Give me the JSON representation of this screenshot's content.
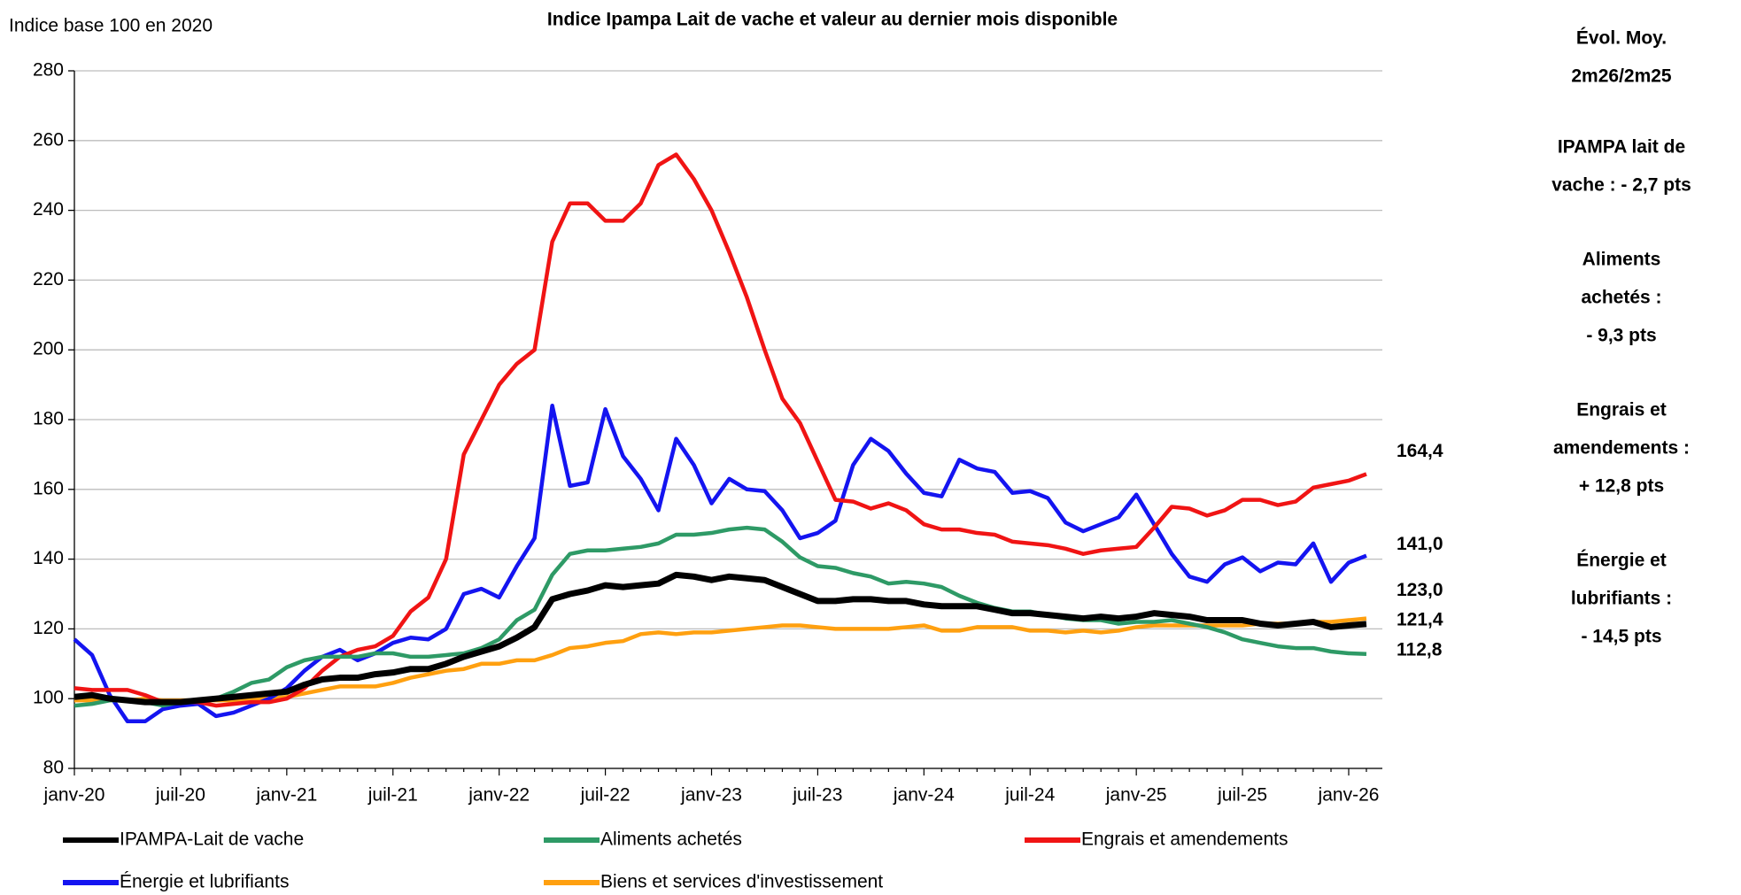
{
  "chart_data": {
    "type": "line",
    "title": "Indice Ipampa Lait de vache et valeur au dernier mois disponible",
    "y_label": "Indice base 100 en 2020",
    "categories": [
      "janv-20",
      null,
      null,
      null,
      null,
      null,
      "juil-20",
      null,
      null,
      null,
      null,
      null,
      "janv-21",
      null,
      null,
      null,
      null,
      null,
      "juil-21",
      null,
      null,
      null,
      null,
      null,
      "janv-22",
      null,
      null,
      null,
      null,
      null,
      "juil-22",
      null,
      null,
      null,
      null,
      null,
      "janv-23",
      null,
      null,
      null,
      null,
      null,
      "juil-23",
      null,
      null,
      null,
      null,
      null,
      "janv-24",
      null,
      null,
      null,
      null,
      null,
      "juil-24",
      null,
      null,
      null,
      null,
      null,
      "janv-25",
      null,
      null,
      null,
      null,
      null,
      "juil-25",
      null,
      null,
      null,
      null,
      null,
      "janv-26",
      null
    ],
    "ylim": [
      80,
      280
    ],
    "yticks": [
      80,
      100,
      120,
      140,
      160,
      180,
      200,
      220,
      240,
      260,
      280
    ],
    "grid": true,
    "series": [
      {
        "name": "IPAMPA-Lait de vache",
        "color": "#000000",
        "end_label": "121,4",
        "values": [
          100.5,
          101,
          100,
          99.5,
          99,
          99,
          99,
          99.5,
          100,
          100.5,
          101,
          101.5,
          102,
          104,
          105.5,
          106,
          106,
          107,
          107.5,
          108.5,
          108.5,
          110,
          112,
          113.5,
          115,
          117.5,
          120.5,
          128.5,
          130,
          131,
          132.5,
          132,
          132.5,
          133,
          135.5,
          135,
          134,
          135,
          134.5,
          134,
          132,
          130,
          128,
          128,
          128.5,
          128.5,
          128,
          128,
          127,
          126.5,
          126.5,
          126.5,
          125.5,
          124.5,
          124.5,
          124,
          123.5,
          123,
          123.5,
          123,
          123.5,
          124.5,
          124,
          123.5,
          122.5,
          122.5,
          122.5,
          121.5,
          121,
          121.5,
          122,
          120.5,
          121,
          121.4
        ]
      },
      {
        "name": "Aliments achetés",
        "color": "#2e9a66",
        "end_label": "112,8",
        "values": [
          98,
          98.5,
          99.5,
          99.5,
          99,
          98,
          99,
          99.5,
          100,
          102,
          104.5,
          105.5,
          109,
          111,
          112,
          112,
          112,
          113,
          113,
          112,
          112,
          112.5,
          113,
          114.5,
          117,
          122.5,
          125.5,
          135.5,
          141.5,
          142.5,
          142.5,
          143,
          143.5,
          144.5,
          147,
          147,
          147.5,
          148.5,
          149,
          148.5,
          145,
          140.5,
          138,
          137.5,
          136,
          135,
          133,
          133.5,
          133,
          132,
          129.5,
          127.5,
          126,
          125,
          125,
          124,
          123,
          122.5,
          122.5,
          121.5,
          122,
          122,
          122.5,
          121.5,
          120.5,
          119,
          117,
          116,
          115,
          114.5,
          114.5,
          113.5,
          113,
          112.8
        ]
      },
      {
        "name": "Engrais et amendements",
        "color": "#f01414",
        "end_label": "164,4",
        "values": [
          103,
          102.5,
          102.5,
          102.5,
          101,
          99,
          99,
          99,
          98,
          98.5,
          99,
          99,
          100,
          103,
          108,
          112,
          114,
          115,
          118,
          125,
          129,
          140,
          170,
          180,
          190,
          196,
          200,
          231,
          242,
          242,
          237,
          237,
          242,
          253,
          256,
          249,
          240,
          228,
          215,
          200,
          186,
          179,
          168,
          157,
          156.5,
          154.5,
          156,
          154,
          150,
          148.5,
          148.5,
          147.5,
          147,
          145,
          144.5,
          144,
          143,
          141.5,
          142.5,
          143,
          143.5,
          149,
          155,
          154.5,
          152.5,
          154,
          157,
          157,
          155.5,
          156.5,
          160.5,
          161.5,
          162.5,
          164.4
        ]
      },
      {
        "name": "Énergie et lubrifiants",
        "color": "#1414f0",
        "end_label": "141,0",
        "values": [
          117,
          112.5,
          101,
          93.5,
          93.5,
          97,
          98,
          98.5,
          95,
          96,
          98,
          100,
          103,
          108,
          112,
          114,
          111,
          113,
          116,
          117.5,
          117,
          120,
          130,
          131.5,
          129,
          138,
          146,
          184,
          161,
          162,
          183,
          169.5,
          163,
          154,
          174.5,
          167,
          156,
          163,
          160,
          159.5,
          154,
          146,
          147.5,
          151,
          167,
          174.5,
          171,
          164.5,
          159,
          158,
          168.5,
          166,
          165,
          159,
          159.5,
          157.5,
          150.5,
          148,
          150,
          152,
          158.5,
          150,
          141.5,
          135,
          133.5,
          138.5,
          140.5,
          136.5,
          139,
          138.5,
          144.5,
          133.5,
          139,
          141
        ]
      },
      {
        "name": "Biens et services d'investissement",
        "color": "#ffa010",
        "end_label": "123,0",
        "values": [
          99.5,
          99.5,
          99.5,
          99.5,
          100,
          99.5,
          99.5,
          99.5,
          99.5,
          99.5,
          100,
          100,
          100.5,
          101.5,
          102.5,
          103.5,
          103.5,
          103.5,
          104.5,
          106,
          107,
          108,
          108.5,
          110,
          110,
          111,
          111,
          112.5,
          114.5,
          115,
          116,
          116.5,
          118.5,
          119,
          118.5,
          119,
          119,
          119.5,
          120,
          120.5,
          121,
          121,
          120.5,
          120,
          120,
          120,
          120,
          120.5,
          121,
          119.5,
          119.5,
          120.5,
          120.5,
          120.5,
          119.5,
          119.5,
          119,
          119.5,
          119,
          119.5,
          120.5,
          121,
          121,
          121,
          121,
          121,
          121,
          121.5,
          121.5,
          121.5,
          122,
          122,
          122.5,
          123
        ]
      }
    ]
  },
  "panel": {
    "title": [
      "Évol. Moy.",
      "2m26/2m25"
    ],
    "items": [
      {
        "color": "#000000",
        "lines": [
          "IPAMPA lait de",
          "vache : - 2,7 pts"
        ]
      },
      {
        "color": "#2e9a66",
        "lines": [
          "Aliments",
          "achetés :",
          "- 9,3 pts"
        ]
      },
      {
        "color": "#f01414",
        "lines": [
          "Engrais et",
          "amendements :",
          "+ 12,8 pts"
        ]
      },
      {
        "color": "#3c3cf0",
        "lines": [
          "Énergie et",
          "lubrifiants :",
          "- 14,5 pts"
        ]
      }
    ]
  }
}
